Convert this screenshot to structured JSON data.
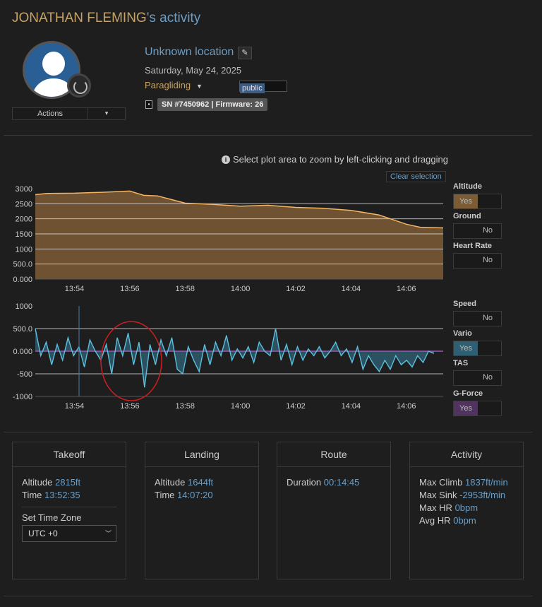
{
  "header": {
    "name": "JONATHAN FLEMING",
    "suffix": "'s activity"
  },
  "profile": {
    "actions_label": "Actions",
    "actions_caret": "▾"
  },
  "activity": {
    "location": "Unknown location",
    "date": "Saturday, May 24, 2025",
    "sport": "Paragliding",
    "visibility": "public",
    "device": "SN #7450962 | Firmware: 26",
    "device_checked": true
  },
  "plot": {
    "hint": "Select plot area to zoom by left-clicking and dragging",
    "clear_selection": "Clear selection"
  },
  "toggles": [
    {
      "label": "Altitude",
      "state": "Yes",
      "on": true
    },
    {
      "label": "Ground",
      "state": "No",
      "on": false
    },
    {
      "label": "Heart Rate",
      "state": "No",
      "on": false
    },
    {
      "label": "Speed",
      "state": "No",
      "on": false
    },
    {
      "label": "Vario",
      "state": "Yes",
      "on": true
    },
    {
      "label": "TAS",
      "state": "No",
      "on": false
    },
    {
      "label": "G-Force",
      "state": "Yes",
      "on": true
    }
  ],
  "colors": {
    "altitude": "#f5b563",
    "vario": "#5bc0de",
    "gforce": "#9b59b6",
    "accent": "#6c9ec5",
    "brand": "#c5a267",
    "annotation": "#cc1f1f"
  },
  "panels": {
    "takeoff": {
      "title": "Takeoff",
      "altitude_label": "Altitude",
      "altitude": "2815ft",
      "time_label": "Time",
      "time": "13:52:35",
      "tz_label": "Set Time Zone",
      "tz_value": "UTC +0"
    },
    "landing": {
      "title": "Landing",
      "altitude_label": "Altitude",
      "altitude": "1644ft",
      "time_label": "Time",
      "time": "14:07:20"
    },
    "route": {
      "title": "Route",
      "duration_label": "Duration",
      "duration": "00:14:45"
    },
    "activity": {
      "title": "Activity",
      "max_climb_label": "Max Climb",
      "max_climb": "1837ft/min",
      "max_sink_label": "Max Sink",
      "max_sink": "-2953ft/min",
      "max_hr_label": "Max HR",
      "max_hr": "0bpm",
      "avg_hr_label": "Avg HR",
      "avg_hr": "0bpm"
    }
  },
  "chart_data": [
    {
      "type": "area",
      "series": [
        {
          "name": "Altitude",
          "x": [
            "13:52:35",
            "13:53",
            "13:54",
            "13:55",
            "13:56",
            "13:56:30",
            "13:57",
            "13:58",
            "13:59",
            "14:00",
            "14:01",
            "14:02",
            "14:03",
            "14:04",
            "14:05",
            "14:06",
            "14:06:30",
            "14:07:20"
          ],
          "values": [
            2800,
            2840,
            2850,
            2880,
            2920,
            2780,
            2760,
            2520,
            2480,
            2420,
            2450,
            2380,
            2350,
            2280,
            2130,
            1820,
            1720,
            1700
          ]
        }
      ],
      "ylim": [
        0,
        3000
      ],
      "y_ticks": [
        "0.000",
        "500.0",
        "1000",
        "1500",
        "2000",
        "2500",
        "3000"
      ],
      "x_ticks": [
        "13:54",
        "13:56",
        "13:58",
        "14:00",
        "14:02",
        "14:04",
        "14:06"
      ],
      "grid": true
    },
    {
      "type": "line",
      "series": [
        {
          "name": "Vario",
          "x_start": "13:52:35",
          "x_end": "14:07:00",
          "values": [
            500,
            -100,
            200,
            -300,
            150,
            -200,
            300,
            -100,
            100,
            -350,
            250,
            0,
            -200,
            150,
            -500,
            300,
            -100,
            400,
            -300,
            200,
            -800,
            150,
            -300,
            250,
            -100,
            300,
            -400,
            -500,
            100,
            -200,
            -450,
            150,
            -300,
            200,
            -100,
            350,
            -200,
            50,
            -150,
            100,
            -250,
            200,
            0,
            -100,
            500,
            -200,
            150,
            -300,
            100,
            -200,
            50,
            -100,
            100,
            -150,
            0,
            200,
            -100,
            50,
            -250,
            100,
            -400,
            -100,
            -300,
            -450,
            -200,
            -400,
            -100,
            -300,
            -200,
            -350,
            -100,
            -250,
            0,
            -50
          ]
        }
      ],
      "ylim": [
        -1000,
        1000
      ],
      "y_ticks": [
        "-1000",
        "-500",
        "0.000",
        "500.0",
        "1000"
      ],
      "x_ticks": [
        "13:54",
        "13:56",
        "13:58",
        "14:00",
        "14:02",
        "14:04",
        "14:06"
      ],
      "grid": true
    }
  ]
}
